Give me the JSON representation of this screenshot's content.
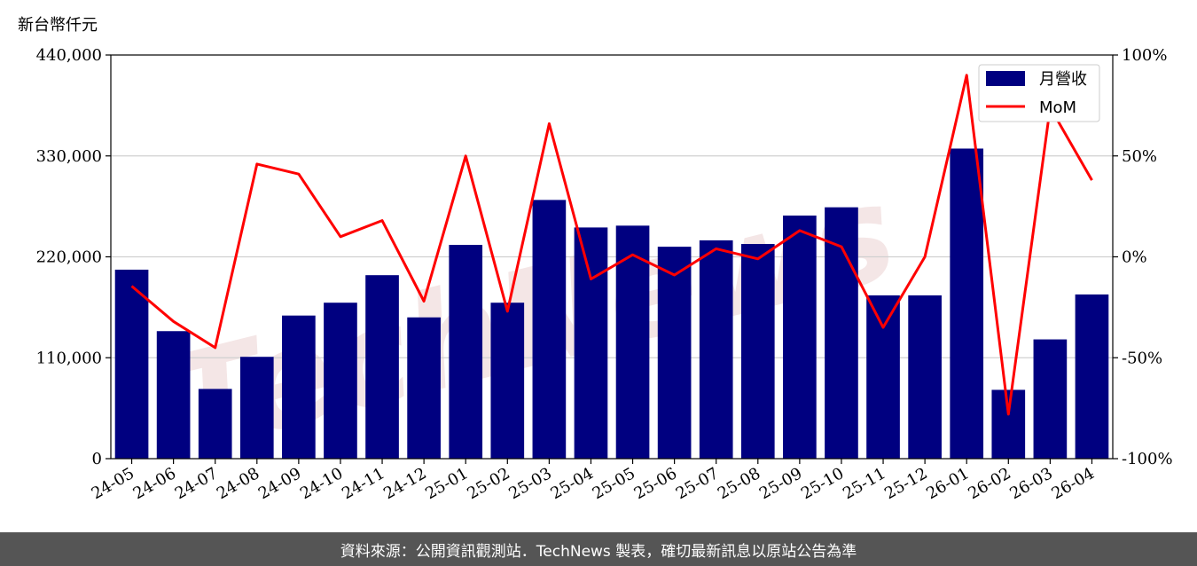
{
  "chart_data": {
    "type": "bar",
    "y_unit_label": "新台幣仟元",
    "categories": [
      "24-05",
      "24-06",
      "24-07",
      "24-08",
      "24-09",
      "24-10",
      "24-11",
      "24-12",
      "25-01",
      "25-02",
      "25-03",
      "25-04",
      "25-05",
      "25-06",
      "25-07",
      "25-08",
      "25-09",
      "25-10",
      "25-11",
      "25-12",
      "26-01",
      "26-02",
      "26-03",
      "26-04"
    ],
    "series": [
      {
        "name": "月營收",
        "type": "bar",
        "axis": "left",
        "color": "#000080",
        "values": [
          206000,
          139000,
          76000,
          111000,
          156000,
          170000,
          200000,
          154000,
          233000,
          170000,
          282000,
          252000,
          254000,
          231000,
          238000,
          234000,
          265000,
          274000,
          178000,
          178000,
          338000,
          75000,
          130000,
          179000
        ]
      },
      {
        "name": "MoM",
        "type": "line",
        "axis": "right",
        "color": "#ff0000",
        "values": [
          -14.5,
          -32,
          -45,
          46,
          41,
          10,
          18,
          -22,
          50,
          -27,
          66,
          -11,
          1,
          -9,
          4,
          -1,
          13,
          5,
          -35,
          0,
          90,
          -78,
          74,
          38
        ]
      }
    ],
    "y_left": {
      "min": 0,
      "max": 440000,
      "ticks": [
        0,
        110000,
        220000,
        330000,
        440000
      ],
      "tick_labels": [
        "0",
        "110,000",
        "220,000",
        "330,000",
        "440,000"
      ]
    },
    "y_right": {
      "min": -100,
      "max": 100,
      "ticks": [
        -100,
        -50,
        0,
        50,
        100
      ],
      "tick_labels": [
        "-100%",
        "-50%",
        "0%",
        "50%",
        "100%"
      ]
    },
    "grid": true,
    "legend_position": "top-right"
  },
  "watermark": "TechNews",
  "footer": {
    "text": "資料來源：公開資訊觀測站．TechNews 製表，確切最新訊息以原站公告為準"
  }
}
